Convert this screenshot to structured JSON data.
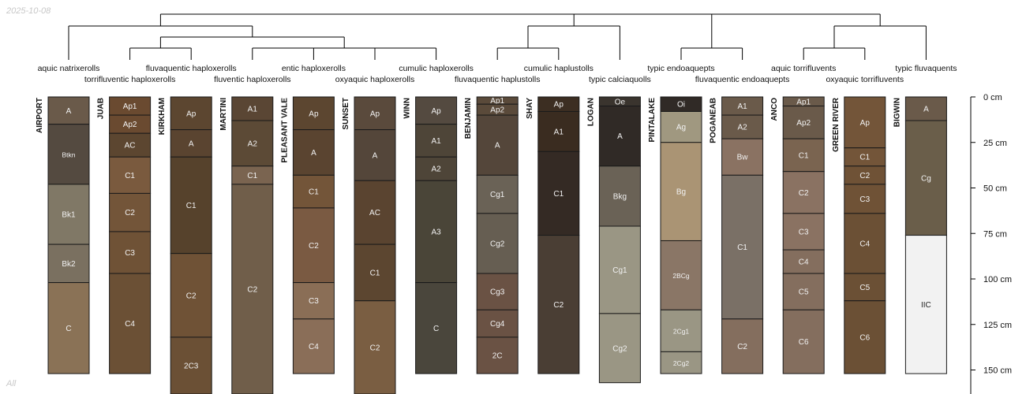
{
  "corner_labels": {
    "date": "2025-10-08",
    "subset": "All"
  },
  "depth_axis": {
    "unit": "cm",
    "max": 160,
    "ticks": [
      {
        "value": 0,
        "label": "0 cm"
      },
      {
        "value": 25,
        "label": "25 cm"
      },
      {
        "value": 50,
        "label": "50 cm"
      },
      {
        "value": 75,
        "label": "75 cm"
      },
      {
        "value": 100,
        "label": "100 cm"
      },
      {
        "value": 125,
        "label": "125 cm"
      },
      {
        "value": 150,
        "label": "150 cm"
      }
    ]
  },
  "profiles": [
    {
      "name": "AIRPORT",
      "taxon": "aquic natrixerolls",
      "horizons": [
        {
          "name": "A",
          "top": 0,
          "bottom": 15,
          "color": "#6a5a4a"
        },
        {
          "name": "Btkn",
          "top": 15,
          "bottom": 48,
          "color": "#544a40"
        },
        {
          "name": "Bk1",
          "top": 48,
          "bottom": 81,
          "color": "#807866"
        },
        {
          "name": "Bk2",
          "top": 81,
          "bottom": 102,
          "color": "#7a7060"
        },
        {
          "name": "C",
          "top": 102,
          "bottom": 152,
          "color": "#8a7256"
        }
      ]
    },
    {
      "name": "JUAB",
      "taxon": "torrifluventic haploxerolls",
      "horizons": [
        {
          "name": "Ap1",
          "top": 0,
          "bottom": 10,
          "color": "#6a4a30"
        },
        {
          "name": "Ap2",
          "top": 10,
          "bottom": 20,
          "color": "#6a4a30"
        },
        {
          "name": "AC",
          "top": 20,
          "bottom": 33,
          "color": "#5c4630"
        },
        {
          "name": "C1",
          "top": 33,
          "bottom": 53,
          "color": "#7a5a3e"
        },
        {
          "name": "C2",
          "top": 53,
          "bottom": 74,
          "color": "#735539"
        },
        {
          "name": "C3",
          "top": 74,
          "bottom": 97,
          "color": "#6f5236"
        },
        {
          "name": "C4",
          "top": 97,
          "bottom": 152,
          "color": "#6b5035"
        }
      ]
    },
    {
      "name": "KIRKHAM",
      "taxon": "fluvaquentic haploxerolls",
      "horizons": [
        {
          "name": "Ap",
          "top": 0,
          "bottom": 18,
          "color": "#5c4630"
        },
        {
          "name": "A",
          "top": 18,
          "bottom": 33,
          "color": "#5a4430"
        },
        {
          "name": "C1",
          "top": 33,
          "bottom": 86,
          "color": "#56422c"
        },
        {
          "name": "C2",
          "top": 86,
          "bottom": 132,
          "color": "#6f5236"
        },
        {
          "name": "2C3",
          "top": 132,
          "bottom": 170,
          "color": "#6b5035"
        }
      ]
    },
    {
      "name": "MARTINI",
      "taxon": "fluventic haploxerolls",
      "horizons": [
        {
          "name": "A1",
          "top": 0,
          "bottom": 13,
          "color": "#5a4634"
        },
        {
          "name": "A2",
          "top": 13,
          "bottom": 38,
          "color": "#5c4a36"
        },
        {
          "name": "C1",
          "top": 38,
          "bottom": 48,
          "color": "#7a6450"
        },
        {
          "name": "C2",
          "top": 48,
          "bottom": 170,
          "color": "#705e4a"
        }
      ]
    },
    {
      "name": "PLEASANT VALE",
      "taxon": "entic haploxerolls",
      "horizons": [
        {
          "name": "Ap",
          "top": 0,
          "bottom": 18,
          "color": "#5c4630"
        },
        {
          "name": "A",
          "top": 18,
          "bottom": 43,
          "color": "#5a4430"
        },
        {
          "name": "C1",
          "top": 43,
          "bottom": 61,
          "color": "#735539"
        },
        {
          "name": "C2",
          "top": 61,
          "bottom": 102,
          "color": "#7a5a42"
        },
        {
          "name": "C3",
          "top": 102,
          "bottom": 122,
          "color": "#8a6e56"
        },
        {
          "name": "C4",
          "top": 122,
          "bottom": 152,
          "color": "#8a6e58"
        }
      ]
    },
    {
      "name": "SUNSET",
      "taxon": "oxyaquic haploxerolls",
      "horizons": [
        {
          "name": "Ap",
          "top": 0,
          "bottom": 18,
          "color": "#5a4a3c"
        },
        {
          "name": "A",
          "top": 18,
          "bottom": 46,
          "color": "#54463a"
        },
        {
          "name": "AC",
          "top": 46,
          "bottom": 81,
          "color": "#5a4430"
        },
        {
          "name": "C1",
          "top": 81,
          "bottom": 112,
          "color": "#5c4630"
        },
        {
          "name": "C2",
          "top": 112,
          "bottom": 170,
          "color": "#7a5e42"
        }
      ]
    },
    {
      "name": "WINN",
      "taxon": "cumulic haploxerolls",
      "horizons": [
        {
          "name": "Ap",
          "top": 0,
          "bottom": 15,
          "color": "#544a40"
        },
        {
          "name": "A1",
          "top": 15,
          "bottom": 33,
          "color": "#4e4538"
        },
        {
          "name": "A2",
          "top": 33,
          "bottom": 46,
          "color": "#4e4538"
        },
        {
          "name": "A3",
          "top": 46,
          "bottom": 102,
          "color": "#4a4538"
        },
        {
          "name": "C",
          "top": 102,
          "bottom": 152,
          "color": "#4a463c"
        }
      ]
    },
    {
      "name": "BENJAMIN",
      "taxon": "fluvaquentic haplustolls",
      "horizons": [
        {
          "name": "Ap1",
          "top": 0,
          "bottom": 4,
          "color": "#5a4a3a"
        },
        {
          "name": "Ap2",
          "top": 4,
          "bottom": 10,
          "color": "#5a4a3a"
        },
        {
          "name": "A",
          "top": 10,
          "bottom": 43,
          "color": "#54463a"
        },
        {
          "name": "Cg1",
          "top": 43,
          "bottom": 64,
          "color": "#6a6256"
        },
        {
          "name": "Cg2",
          "top": 64,
          "bottom": 97,
          "color": "#665e52"
        },
        {
          "name": "Cg3",
          "top": 97,
          "bottom": 117,
          "color": "#6a5244"
        },
        {
          "name": "Cg4",
          "top": 117,
          "bottom": 132,
          "color": "#6a5244"
        },
        {
          "name": "2C",
          "top": 132,
          "bottom": 152,
          "color": "#6a5244"
        }
      ]
    },
    {
      "name": "SHAY",
      "taxon": "cumulic haplustolls",
      "horizons": [
        {
          "name": "Ap",
          "top": 0,
          "bottom": 8,
          "color": "#3c2e22"
        },
        {
          "name": "A1",
          "top": 8,
          "bottom": 30,
          "color": "#3a2c20"
        },
        {
          "name": "C1",
          "top": 30,
          "bottom": 76,
          "color": "#342a24"
        },
        {
          "name": "C2",
          "top": 76,
          "bottom": 152,
          "color": "#4a3e34"
        }
      ]
    },
    {
      "name": "LOGAN",
      "taxon": "typic calciaquolls",
      "horizons": [
        {
          "name": "Oe",
          "top": 0,
          "bottom": 5,
          "color": "#3a342e"
        },
        {
          "name": "A",
          "top": 5,
          "bottom": 38,
          "color": "#302a26"
        },
        {
          "name": "Bkg",
          "top": 38,
          "bottom": 71,
          "color": "#6a6256"
        },
        {
          "name": "Cg1",
          "top": 71,
          "bottom": 119,
          "color": "#9a9684"
        },
        {
          "name": "Cg2",
          "top": 119,
          "bottom": 157,
          "color": "#9a9684"
        }
      ]
    },
    {
      "name": "PINTALAKE",
      "taxon": "typic endoaquepts",
      "horizons": [
        {
          "name": "Oi",
          "top": 0,
          "bottom": 8,
          "color": "#302a26"
        },
        {
          "name": "Ag",
          "top": 8,
          "bottom": 25,
          "color": "#a09880"
        },
        {
          "name": "Bg",
          "top": 25,
          "bottom": 79,
          "color": "#aa9474"
        },
        {
          "name": "2BCg",
          "top": 79,
          "bottom": 117,
          "color": "#8a7666"
        },
        {
          "name": "2Cg1",
          "top": 117,
          "bottom": 140,
          "color": "#9a9684"
        },
        {
          "name": "2Cg2",
          "top": 140,
          "bottom": 152,
          "color": "#9a9684"
        }
      ]
    },
    {
      "name": "POGANEAB",
      "taxon": "fluvaquentic endoaquepts",
      "horizons": [
        {
          "name": "A1",
          "top": 0,
          "bottom": 10,
          "color": "#6a5a4a"
        },
        {
          "name": "A2",
          "top": 10,
          "bottom": 23,
          "color": "#6a5a4a"
        },
        {
          "name": "Bw",
          "top": 23,
          "bottom": 43,
          "color": "#8a7262"
        },
        {
          "name": "C1",
          "top": 43,
          "bottom": 122,
          "color": "#7a7066"
        },
        {
          "name": "C2",
          "top": 122,
          "bottom": 152,
          "color": "#846e5e"
        }
      ]
    },
    {
      "name": "ANCO",
      "taxon": "aquic torrifluvents",
      "horizons": [
        {
          "name": "Ap1",
          "top": 0,
          "bottom": 5,
          "color": "#6a5a4a"
        },
        {
          "name": "Ap2",
          "top": 5,
          "bottom": 23,
          "color": "#6a5a4a"
        },
        {
          "name": "C1",
          "top": 23,
          "bottom": 41,
          "color": "#7a6450"
        },
        {
          "name": "C2",
          "top": 41,
          "bottom": 64,
          "color": "#8a7262"
        },
        {
          "name": "C3",
          "top": 64,
          "bottom": 84,
          "color": "#8a7262"
        },
        {
          "name": "C4",
          "top": 84,
          "bottom": 97,
          "color": "#846e5e"
        },
        {
          "name": "C5",
          "top": 97,
          "bottom": 117,
          "color": "#846e5e"
        },
        {
          "name": "C6",
          "top": 117,
          "bottom": 152,
          "color": "#846e5e"
        }
      ]
    },
    {
      "name": "GREEN RIVER",
      "taxon": "oxyaquic torrifluvents",
      "horizons": [
        {
          "name": "Ap",
          "top": 0,
          "bottom": 28,
          "color": "#735539"
        },
        {
          "name": "C1",
          "top": 28,
          "bottom": 38,
          "color": "#735539"
        },
        {
          "name": "C2",
          "top": 38,
          "bottom": 48,
          "color": "#6f5236"
        },
        {
          "name": "C3",
          "top": 48,
          "bottom": 64,
          "color": "#6f5236"
        },
        {
          "name": "C4",
          "top": 64,
          "bottom": 97,
          "color": "#6b5035"
        },
        {
          "name": "C5",
          "top": 97,
          "bottom": 112,
          "color": "#6b5035"
        },
        {
          "name": "C6",
          "top": 112,
          "bottom": 152,
          "color": "#6b5035"
        }
      ]
    },
    {
      "name": "BIGWIN",
      "taxon": "typic fluvaquents",
      "horizons": [
        {
          "name": "A",
          "top": 0,
          "bottom": 13,
          "color": "#6a5a4a"
        },
        {
          "name": "Cg",
          "top": 13,
          "bottom": 76,
          "color": "#6a5e4a"
        },
        {
          "name": "IIC",
          "top": 76,
          "bottom": 152,
          "color": "#f2f2f2"
        }
      ]
    }
  ]
}
